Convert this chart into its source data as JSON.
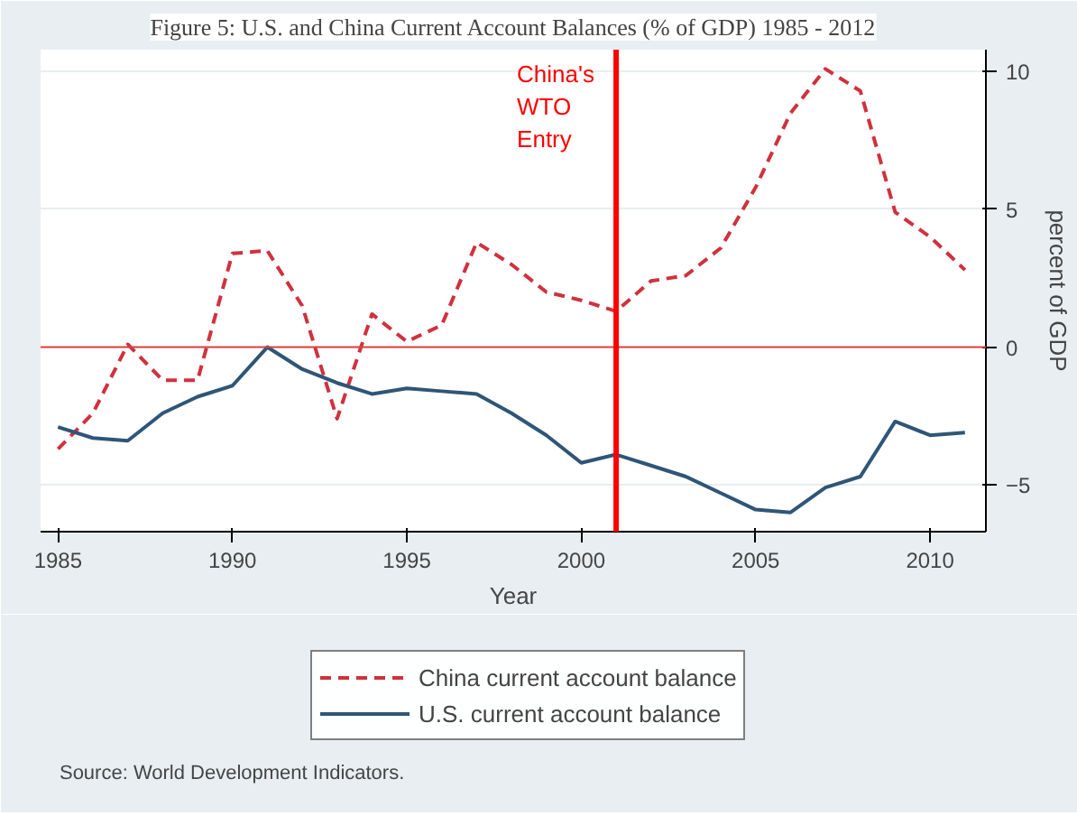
{
  "chart_data": {
    "type": "line",
    "title": "Figure 5: U.S. and China Current Account Balances (% of GDP) 1985 - 2012",
    "xlabel": "Year",
    "ylabel": "percent of GDP",
    "x": [
      1985,
      1986,
      1987,
      1988,
      1989,
      1990,
      1991,
      1992,
      1993,
      1994,
      1995,
      1996,
      1997,
      1998,
      1999,
      2000,
      2001,
      2002,
      2003,
      2004,
      2005,
      2006,
      2007,
      2008,
      2009,
      2010,
      2011
    ],
    "series": [
      {
        "name": "China current account balance",
        "color": "#d0313d",
        "line_style": "dashed",
        "values": [
          -3.7,
          -2.4,
          0.1,
          -1.2,
          -1.2,
          3.4,
          3.5,
          1.5,
          -2.6,
          1.2,
          0.2,
          0.8,
          3.8,
          3.0,
          2.0,
          1.7,
          1.3,
          2.4,
          2.6,
          3.6,
          5.8,
          8.5,
          10.1,
          9.3,
          4.9,
          4.0,
          2.8
        ]
      },
      {
        "name": "U.S. current account balance",
        "color": "#2f5577",
        "line_style": "solid",
        "values": [
          -2.9,
          -3.3,
          -3.4,
          -2.4,
          -1.8,
          -1.4,
          0.0,
          -0.8,
          -1.3,
          -1.7,
          -1.5,
          -1.6,
          -1.7,
          -2.4,
          -3.2,
          -4.2,
          -3.9,
          -4.3,
          -4.7,
          -5.3,
          -5.9,
          -6.0,
          -5.1,
          -4.7,
          -2.7,
          -3.2,
          -3.1
        ]
      }
    ],
    "xlim": [
      1984.5,
      2011.6
    ],
    "xticks": [
      1985,
      1990,
      1995,
      2000,
      2005,
      2010
    ],
    "ylim": [
      -6.7,
      10.8
    ],
    "yticks": [
      -5,
      0,
      5,
      10
    ],
    "ref_lines": [
      {
        "axis": "y",
        "value": 0,
        "color": "#d9443f",
        "line_style": "solid"
      },
      {
        "axis": "x",
        "value": 2001,
        "label": "China's\nWTO\nEntry",
        "color": "#ff0000",
        "line_style": "solid"
      }
    ],
    "annotations": [
      "Source: World Development Indicators."
    ],
    "grid": "y",
    "legend": "bottom"
  }
}
